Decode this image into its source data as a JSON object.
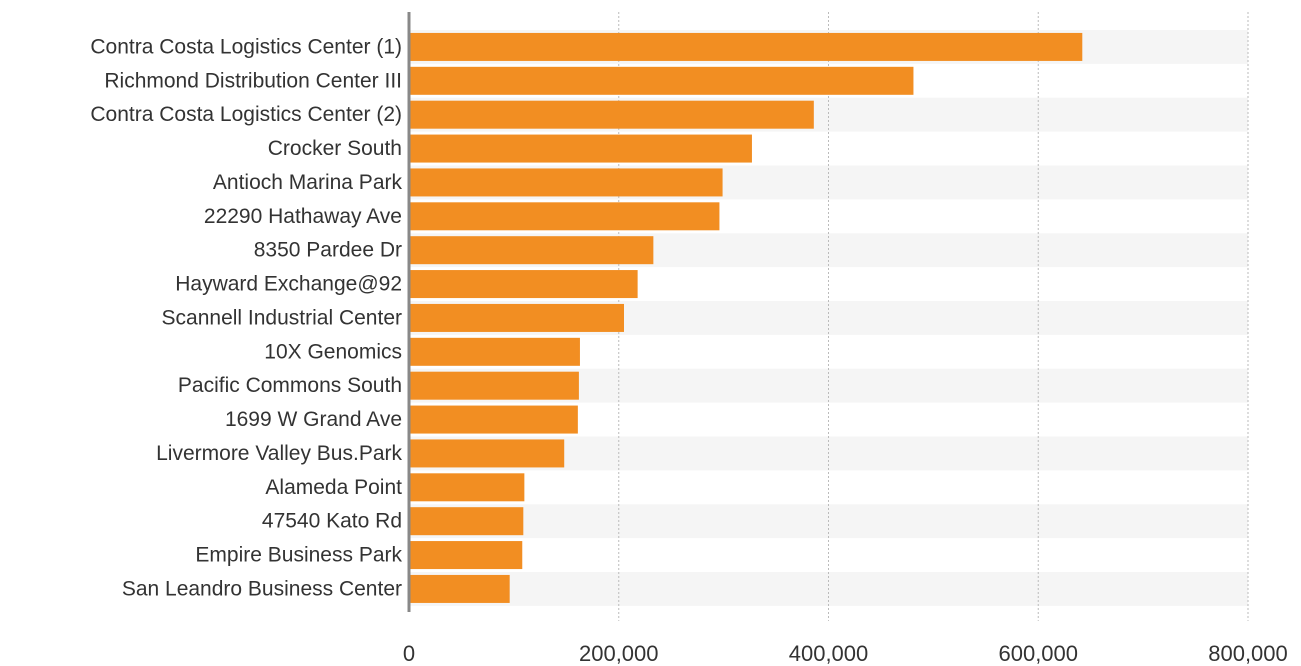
{
  "chart_data": {
    "type": "bar",
    "orientation": "horizontal",
    "categories": [
      "Contra Costa Logistics Center (1)",
      "Richmond Distribution Center III",
      "Contra Costa Logistics Center (2)",
      "Crocker South",
      "Antioch Marina Park",
      "22290 Hathaway Ave",
      "8350 Pardee Dr",
      "Hayward Exchange@92",
      "Scannell Industrial Center",
      "10X Genomics",
      "Pacific Commons South",
      "1699 W Grand Ave",
      "Livermore Valley Bus.Park",
      "Alameda Point",
      "47540 Kato Rd",
      "Empire Business Park",
      "San Leandro Business Center"
    ],
    "values": [
      642000,
      481000,
      386000,
      327000,
      299000,
      296000,
      233000,
      218000,
      205000,
      163000,
      162000,
      161000,
      148000,
      110000,
      109000,
      108000,
      96000
    ],
    "color": "#f28e22",
    "xlim": [
      0,
      800000
    ],
    "xticks": [
      0,
      {
        "value": 200000,
        "label": "200,000"
      },
      {
        "value": 400000,
        "label": "400,000"
      },
      {
        "value": 600000,
        "label": "600,000"
      },
      {
        "value": 800000,
        "label": "800,000"
      }
    ],
    "grid": true
  }
}
